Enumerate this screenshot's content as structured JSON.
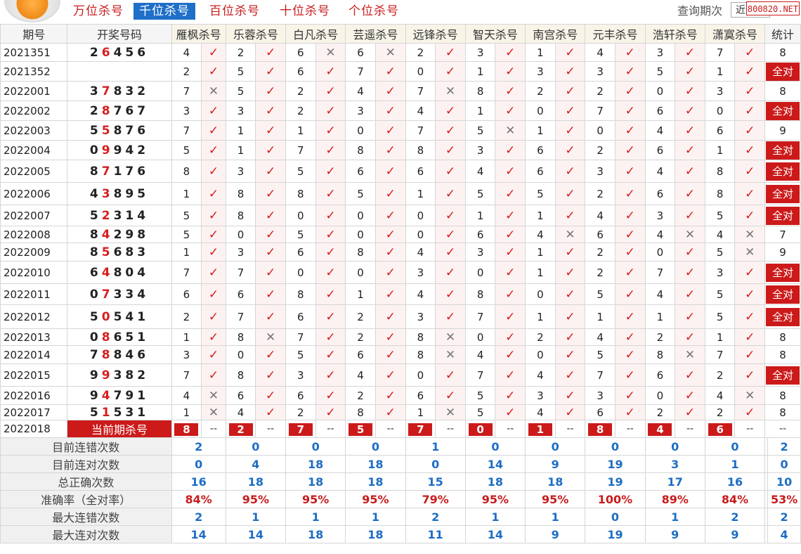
{
  "nav": {
    "tabs": [
      "万位杀号",
      "千位杀号",
      "百位杀号",
      "十位杀号",
      "个位杀号"
    ],
    "active_index": 1,
    "query_label": "查询期次",
    "query_value": "近",
    "watermark": "800820.NET"
  },
  "table": {
    "headers": [
      "期号",
      "开奖号码",
      "雁枫杀号",
      "乐蓉杀号",
      "白凡杀号",
      "芸遥杀号",
      "远锋杀号",
      "智天杀号",
      "南宫杀号",
      "元丰杀号",
      "浩轩杀号",
      "潇寞杀号",
      "统计"
    ],
    "rows": [
      {
        "period": "2021351",
        "draw": "26456",
        "kills": [
          [
            "4",
            "ok"
          ],
          [
            "2",
            "ok"
          ],
          [
            "6",
            "x"
          ],
          [
            "6",
            "x"
          ],
          [
            "2",
            "ok"
          ],
          [
            "3",
            "ok"
          ],
          [
            "1",
            "ok"
          ],
          [
            "4",
            "ok"
          ],
          [
            "3",
            "ok"
          ],
          [
            "7",
            "ok"
          ]
        ],
        "stat": "8"
      },
      {
        "period": "2021352",
        "draw": "",
        "kills": [
          [
            "2",
            "ok"
          ],
          [
            "5",
            "ok"
          ],
          [
            "6",
            "ok"
          ],
          [
            "7",
            "ok"
          ],
          [
            "0",
            "ok"
          ],
          [
            "1",
            "ok"
          ],
          [
            "3",
            "ok"
          ],
          [
            "3",
            "ok"
          ],
          [
            "5",
            "ok"
          ],
          [
            "1",
            "ok"
          ]
        ],
        "stat": "全对"
      },
      {
        "period": "2022001",
        "draw": "37832",
        "kills": [
          [
            "7",
            "x"
          ],
          [
            "5",
            "ok"
          ],
          [
            "2",
            "ok"
          ],
          [
            "4",
            "ok"
          ],
          [
            "7",
            "x"
          ],
          [
            "8",
            "ok"
          ],
          [
            "2",
            "ok"
          ],
          [
            "2",
            "ok"
          ],
          [
            "0",
            "ok"
          ],
          [
            "3",
            "ok"
          ]
        ],
        "stat": "8"
      },
      {
        "period": "2022002",
        "draw": "28767",
        "kills": [
          [
            "3",
            "ok"
          ],
          [
            "3",
            "ok"
          ],
          [
            "2",
            "ok"
          ],
          [
            "3",
            "ok"
          ],
          [
            "4",
            "ok"
          ],
          [
            "1",
            "ok"
          ],
          [
            "0",
            "ok"
          ],
          [
            "7",
            "ok"
          ],
          [
            "6",
            "ok"
          ],
          [
            "0",
            "ok"
          ]
        ],
        "stat": "全对"
      },
      {
        "period": "2022003",
        "draw": "55876",
        "kills": [
          [
            "7",
            "ok"
          ],
          [
            "1",
            "ok"
          ],
          [
            "1",
            "ok"
          ],
          [
            "0",
            "ok"
          ],
          [
            "7",
            "ok"
          ],
          [
            "5",
            "x"
          ],
          [
            "1",
            "ok"
          ],
          [
            "0",
            "ok"
          ],
          [
            "4",
            "ok"
          ],
          [
            "6",
            "ok"
          ]
        ],
        "stat": "9"
      },
      {
        "period": "2022004",
        "draw": "09942",
        "kills": [
          [
            "5",
            "ok"
          ],
          [
            "1",
            "ok"
          ],
          [
            "7",
            "ok"
          ],
          [
            "8",
            "ok"
          ],
          [
            "8",
            "ok"
          ],
          [
            "3",
            "ok"
          ],
          [
            "6",
            "ok"
          ],
          [
            "2",
            "ok"
          ],
          [
            "6",
            "ok"
          ],
          [
            "1",
            "ok"
          ]
        ],
        "stat": "全对"
      },
      {
        "period": "2022005",
        "draw": "87176",
        "kills": [
          [
            "8",
            "ok"
          ],
          [
            "3",
            "ok"
          ],
          [
            "5",
            "ok"
          ],
          [
            "6",
            "ok"
          ],
          [
            "6",
            "ok"
          ],
          [
            "4",
            "ok"
          ],
          [
            "6",
            "ok"
          ],
          [
            "3",
            "ok"
          ],
          [
            "4",
            "ok"
          ],
          [
            "8",
            "ok"
          ]
        ],
        "stat": "全对"
      },
      {
        "period": "2022006",
        "draw": "43895",
        "kills": [
          [
            "1",
            "ok"
          ],
          [
            "8",
            "ok"
          ],
          [
            "8",
            "ok"
          ],
          [
            "5",
            "ok"
          ],
          [
            "1",
            "ok"
          ],
          [
            "5",
            "ok"
          ],
          [
            "5",
            "ok"
          ],
          [
            "2",
            "ok"
          ],
          [
            "6",
            "ok"
          ],
          [
            "8",
            "ok"
          ]
        ],
        "stat": "全对"
      },
      {
        "period": "2022007",
        "draw": "52314",
        "kills": [
          [
            "5",
            "ok"
          ],
          [
            "8",
            "ok"
          ],
          [
            "0",
            "ok"
          ],
          [
            "0",
            "ok"
          ],
          [
            "0",
            "ok"
          ],
          [
            "1",
            "ok"
          ],
          [
            "1",
            "ok"
          ],
          [
            "4",
            "ok"
          ],
          [
            "3",
            "ok"
          ],
          [
            "5",
            "ok"
          ]
        ],
        "stat": "全对"
      },
      {
        "period": "2022008",
        "draw": "84298",
        "kills": [
          [
            "5",
            "ok"
          ],
          [
            "0",
            "ok"
          ],
          [
            "5",
            "ok"
          ],
          [
            "0",
            "ok"
          ],
          [
            "0",
            "ok"
          ],
          [
            "6",
            "ok"
          ],
          [
            "4",
            "x"
          ],
          [
            "6",
            "ok"
          ],
          [
            "4",
            "x"
          ],
          [
            "4",
            "x"
          ]
        ],
        "stat": "7"
      },
      {
        "period": "2022009",
        "draw": "85683",
        "kills": [
          [
            "1",
            "ok"
          ],
          [
            "3",
            "ok"
          ],
          [
            "6",
            "ok"
          ],
          [
            "8",
            "ok"
          ],
          [
            "4",
            "ok"
          ],
          [
            "3",
            "ok"
          ],
          [
            "1",
            "ok"
          ],
          [
            "2",
            "ok"
          ],
          [
            "0",
            "ok"
          ],
          [
            "5",
            "x"
          ]
        ],
        "stat": "9"
      },
      {
        "period": "2022010",
        "draw": "64804",
        "kills": [
          [
            "7",
            "ok"
          ],
          [
            "7",
            "ok"
          ],
          [
            "0",
            "ok"
          ],
          [
            "0",
            "ok"
          ],
          [
            "3",
            "ok"
          ],
          [
            "0",
            "ok"
          ],
          [
            "1",
            "ok"
          ],
          [
            "2",
            "ok"
          ],
          [
            "7",
            "ok"
          ],
          [
            "3",
            "ok"
          ]
        ],
        "stat": "全对"
      },
      {
        "period": "2022011",
        "draw": "07334",
        "kills": [
          [
            "6",
            "ok"
          ],
          [
            "6",
            "ok"
          ],
          [
            "8",
            "ok"
          ],
          [
            "1",
            "ok"
          ],
          [
            "4",
            "ok"
          ],
          [
            "8",
            "ok"
          ],
          [
            "0",
            "ok"
          ],
          [
            "5",
            "ok"
          ],
          [
            "4",
            "ok"
          ],
          [
            "5",
            "ok"
          ]
        ],
        "stat": "全对"
      },
      {
        "period": "2022012",
        "draw": "50541",
        "kills": [
          [
            "2",
            "ok"
          ],
          [
            "7",
            "ok"
          ],
          [
            "6",
            "ok"
          ],
          [
            "2",
            "ok"
          ],
          [
            "3",
            "ok"
          ],
          [
            "7",
            "ok"
          ],
          [
            "1",
            "ok"
          ],
          [
            "1",
            "ok"
          ],
          [
            "1",
            "ok"
          ],
          [
            "5",
            "ok"
          ]
        ],
        "stat": "全对"
      },
      {
        "period": "2022013",
        "draw": "08651",
        "kills": [
          [
            "1",
            "ok"
          ],
          [
            "8",
            "x"
          ],
          [
            "7",
            "ok"
          ],
          [
            "2",
            "ok"
          ],
          [
            "8",
            "x"
          ],
          [
            "0",
            "ok"
          ],
          [
            "2",
            "ok"
          ],
          [
            "4",
            "ok"
          ],
          [
            "2",
            "ok"
          ],
          [
            "1",
            "ok"
          ]
        ],
        "stat": "8"
      },
      {
        "period": "2022014",
        "draw": "78846",
        "kills": [
          [
            "3",
            "ok"
          ],
          [
            "0",
            "ok"
          ],
          [
            "5",
            "ok"
          ],
          [
            "6",
            "ok"
          ],
          [
            "8",
            "x"
          ],
          [
            "4",
            "ok"
          ],
          [
            "0",
            "ok"
          ],
          [
            "5",
            "ok"
          ],
          [
            "8",
            "x"
          ],
          [
            "7",
            "ok"
          ]
        ],
        "stat": "8"
      },
      {
        "period": "2022015",
        "draw": "99382",
        "kills": [
          [
            "7",
            "ok"
          ],
          [
            "8",
            "ok"
          ],
          [
            "3",
            "ok"
          ],
          [
            "4",
            "ok"
          ],
          [
            "0",
            "ok"
          ],
          [
            "7",
            "ok"
          ],
          [
            "4",
            "ok"
          ],
          [
            "7",
            "ok"
          ],
          [
            "6",
            "ok"
          ],
          [
            "2",
            "ok"
          ]
        ],
        "stat": "全对"
      },
      {
        "period": "2022016",
        "draw": "94791",
        "kills": [
          [
            "4",
            "x"
          ],
          [
            "6",
            "ok"
          ],
          [
            "6",
            "ok"
          ],
          [
            "2",
            "ok"
          ],
          [
            "6",
            "ok"
          ],
          [
            "5",
            "ok"
          ],
          [
            "3",
            "ok"
          ],
          [
            "3",
            "ok"
          ],
          [
            "0",
            "ok"
          ],
          [
            "4",
            "x"
          ]
        ],
        "stat": "8"
      },
      {
        "period": "2022017",
        "draw": "51531",
        "kills": [
          [
            "1",
            "x"
          ],
          [
            "4",
            "ok"
          ],
          [
            "2",
            "ok"
          ],
          [
            "8",
            "ok"
          ],
          [
            "1",
            "x"
          ],
          [
            "5",
            "ok"
          ],
          [
            "4",
            "ok"
          ],
          [
            "6",
            "ok"
          ],
          [
            "2",
            "ok"
          ],
          [
            "2",
            "ok"
          ]
        ],
        "stat": "8"
      }
    ],
    "current": {
      "period": "2022018",
      "label": "当前期杀号",
      "kills": [
        "8",
        "2",
        "7",
        "5",
        "7",
        "0",
        "1",
        "8",
        "4",
        "6"
      ],
      "dash": "--"
    }
  },
  "summary": {
    "rows": [
      {
        "label": "目前连错次数",
        "values": [
          "2",
          "0",
          "0",
          "0",
          "1",
          "0",
          "0",
          "0",
          "0",
          "0"
        ],
        "stat": "2",
        "red": false
      },
      {
        "label": "目前连对次数",
        "values": [
          "0",
          "4",
          "18",
          "18",
          "0",
          "14",
          "9",
          "19",
          "3",
          "1"
        ],
        "stat": "0",
        "red": false
      },
      {
        "label": "总正确次数",
        "values": [
          "16",
          "18",
          "18",
          "18",
          "15",
          "18",
          "18",
          "19",
          "17",
          "16"
        ],
        "stat": "10",
        "red": false
      },
      {
        "label": "准确率（全对率）",
        "values": [
          "84%",
          "95%",
          "95%",
          "95%",
          "79%",
          "95%",
          "95%",
          "100%",
          "89%",
          "84%"
        ],
        "stat": "53%",
        "red": true
      },
      {
        "label": "最大连错次数",
        "values": [
          "2",
          "1",
          "1",
          "1",
          "2",
          "1",
          "1",
          "0",
          "1",
          "2"
        ],
        "stat": "2",
        "red": false
      },
      {
        "label": "最大连对次数",
        "values": [
          "14",
          "14",
          "18",
          "18",
          "11",
          "14",
          "9",
          "19",
          "9",
          "9"
        ],
        "stat": "4",
        "red": false
      }
    ]
  },
  "icons": {
    "ok": "check-icon",
    "x": "cross-icon"
  },
  "colors": {
    "accent_red": "#cc1a1a",
    "tab_blue": "#1f6fc8",
    "stat_blue": "#1d6dc4"
  }
}
